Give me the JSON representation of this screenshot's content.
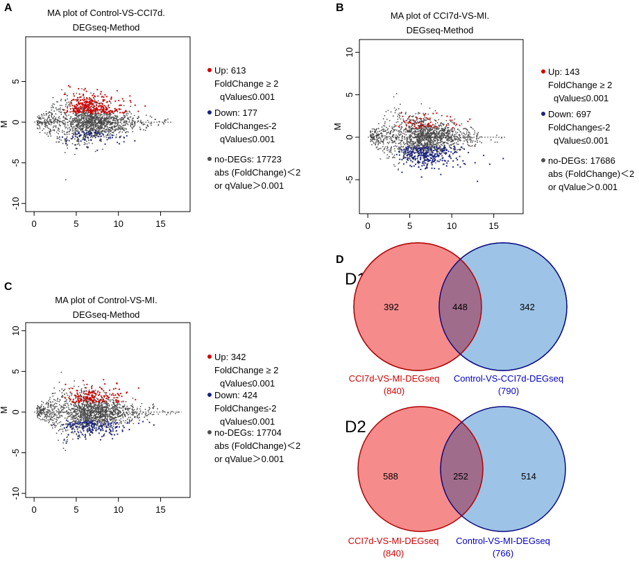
{
  "chart_data": [
    {
      "type": "scatter",
      "panel": "A",
      "title": [
        "MA plot of Control-VS-CCI7d.",
        "DEGseq-Method"
      ],
      "ylabel": "M",
      "xlabel": "",
      "xlim": [
        -1,
        18.5
      ],
      "ylim": [
        -11,
        10.5
      ],
      "xticks": [
        0,
        5,
        10,
        15
      ],
      "yticks": [
        -10,
        -5,
        0,
        5
      ],
      "legend": [
        {
          "color": "#d40000",
          "lines": [
            "Up: 613",
            "FoldChange ≥ 2",
            "qValue≤0.001"
          ]
        },
        {
          "color": "#1a237e",
          "lines": [
            "Down: 177",
            "FoldChange≤-2",
            "qValue≤0.001"
          ]
        },
        {
          "color": "#505050",
          "lines": [
            "no-DEGs: 17723",
            "abs (FoldChange)＜2",
            "or qValue＞0.001"
          ]
        }
      ],
      "series": [
        {
          "name": "Up",
          "count": 613,
          "color": "#d40000"
        },
        {
          "name": "Down",
          "count": 177,
          "color": "#1a237e"
        },
        {
          "name": "no-DEGs",
          "count": 17723,
          "color": "#4a4a4a"
        }
      ],
      "up_scale": 1.25,
      "down_scale": 0.85,
      "max_a": 16.5
    },
    {
      "type": "scatter",
      "panel": "B",
      "title": [
        "MA plot of CCI7d-VS-MI.",
        "DEGseq-Method"
      ],
      "ylabel": "M",
      "xlabel": "",
      "xlim": [
        -1,
        18.5
      ],
      "ylim": [
        -9,
        11.5
      ],
      "xticks": [
        0,
        5,
        10,
        15
      ],
      "yticks": [
        -5,
        0,
        5,
        10
      ],
      "legend": [
        {
          "color": "#d40000",
          "lines": [
            "Up: 143",
            "FoldChange ≥ 2",
            "qValue≤0.001"
          ]
        },
        {
          "color": "#1a237e",
          "lines": [
            "Down: 697",
            "FoldChange≤-2",
            "qValue≤0.001"
          ]
        },
        {
          "color": "#505050",
          "lines": [
            "no-DEGs: 17686",
            "abs (FoldChange)＜2",
            "or qValue＞0.001"
          ]
        }
      ],
      "series": [
        {
          "name": "Up",
          "count": 143,
          "color": "#d40000"
        },
        {
          "name": "Down",
          "count": 697,
          "color": "#1a237e"
        },
        {
          "name": "no-DEGs",
          "count": 17686,
          "color": "#4a4a4a"
        }
      ],
      "up_scale": 0.95,
      "down_scale": 1.35,
      "max_a": 16.5
    },
    {
      "type": "scatter",
      "panel": "C",
      "title": [
        "MA plot of Control-VS-MI.",
        "DEGseq-Method"
      ],
      "ylabel": "M",
      "xlabel": "",
      "xlim": [
        -1,
        18.5
      ],
      "ylim": [
        -10.5,
        11
      ],
      "xticks": [
        0,
        5,
        10,
        15
      ],
      "yticks": [
        -10,
        -5,
        0,
        5,
        10
      ],
      "legend": [
        {
          "color": "#d40000",
          "lines": [
            "Up: 342",
            "FoldChange ≥ 2",
            "qValue≤0.001"
          ]
        },
        {
          "color": "#1a237e",
          "lines": [
            "Down: 424",
            "FoldChange≤-2",
            "qValue≤0.001"
          ]
        },
        {
          "color": "#505050",
          "lines": [
            "no-DEGs: 17704",
            "abs (FoldChange)＜2",
            "or qValue＞0.001"
          ]
        }
      ],
      "series": [
        {
          "name": "Up",
          "count": 342,
          "color": "#d40000"
        },
        {
          "name": "Down",
          "count": 424,
          "color": "#1a237e"
        },
        {
          "name": "no-DEGs",
          "count": 17704,
          "color": "#4a4a4a"
        }
      ],
      "up_scale": 1.1,
      "down_scale": 1.0,
      "max_a": 17.5
    },
    {
      "type": "venn",
      "panel": "D",
      "diagrams": [
        {
          "id": "D1",
          "left": {
            "name": "CCI7d-VS-MI-DEGseq",
            "total": "(840)",
            "only": 392,
            "color": "#d40000",
            "fill": "#f58b8b"
          },
          "right": {
            "name": "Control-VS-CCI7d-DEGseq",
            "total": "(790)",
            "only": 342,
            "color": "#0000cc",
            "fill": "#9dc3e6"
          },
          "overlap": 448
        },
        {
          "id": "D2",
          "left": {
            "name": "CCI7d-VS-MI-DEGseq",
            "total": "(840)",
            "only": 588,
            "color": "#d40000",
            "fill": "#f58b8b"
          },
          "right": {
            "name": "Control-VS-MI-DEGseq",
            "total": "(766)",
            "only": 514,
            "color": "#0000cc",
            "fill": "#9dc3e6"
          },
          "overlap": 252
        }
      ]
    }
  ]
}
